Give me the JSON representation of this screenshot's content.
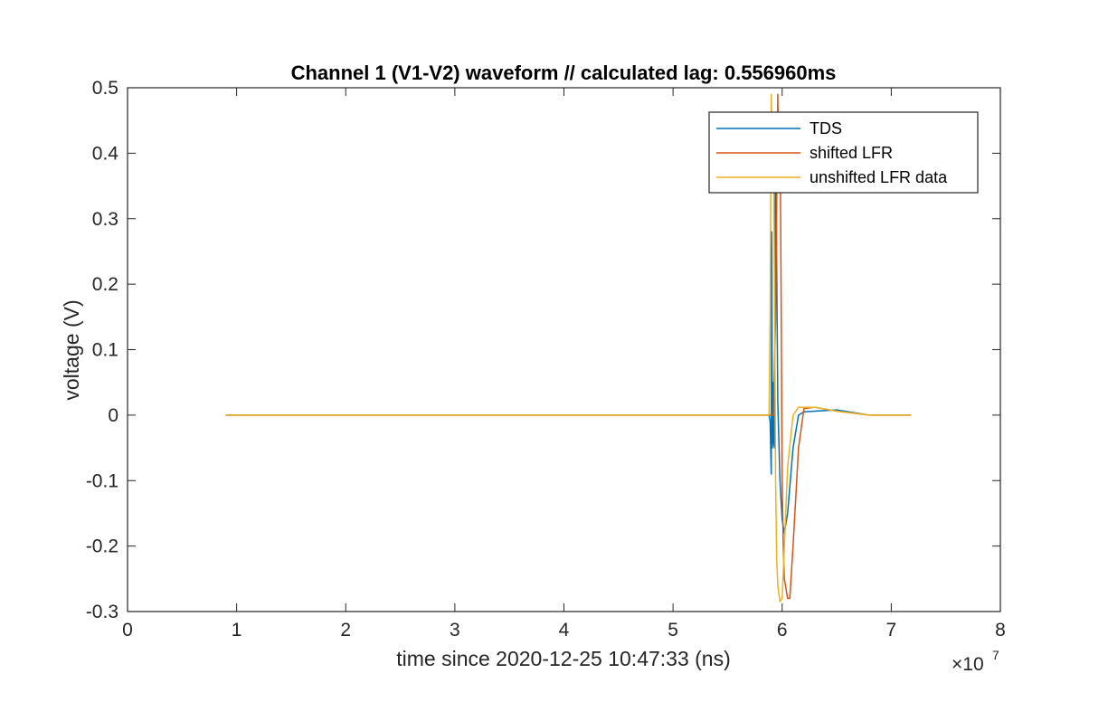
{
  "chart_data": {
    "type": "line",
    "title": "Channel 1 (V1-V2) waveform // calculated lag: 0.556960ms",
    "xlabel": "time since 2020-12-25 10:47:33 (ns)",
    "ylabel": "voltage (V)",
    "x_exponent_label": "×10",
    "x_exponent_power": "7",
    "xlim": [
      0,
      8
    ],
    "ylim": [
      -0.3,
      0.5
    ],
    "x_units_note": "x values in units of 1e7 ns",
    "xticks": [
      0,
      1,
      2,
      3,
      4,
      5,
      6,
      7,
      8
    ],
    "xtick_labels": [
      "0",
      "1",
      "2",
      "3",
      "4",
      "5",
      "6",
      "7",
      "8"
    ],
    "yticks": [
      -0.3,
      -0.2,
      -0.1,
      0,
      0.1,
      0.2,
      0.3,
      0.4,
      0.5
    ],
    "ytick_labels": [
      "-0.3",
      "-0.2",
      "-0.1",
      "0",
      "0.1",
      "0.2",
      "0.3",
      "0.4",
      "0.5"
    ],
    "grid": false,
    "legend_position": "top-right",
    "series": [
      {
        "name": "TDS",
        "color": "#0072BD",
        "x": [
          0.9,
          5.0,
          5.88,
          5.89,
          5.9,
          5.905,
          5.91,
          5.915,
          5.92,
          5.93,
          5.94,
          5.96,
          5.98,
          6.0,
          6.02,
          6.05,
          6.1,
          6.15,
          6.2,
          6.3,
          6.5,
          6.8,
          7.0,
          7.18
        ],
        "y": [
          0,
          0,
          0,
          -0.01,
          -0.09,
          0.28,
          -0.05,
          0.05,
          -0.04,
          -0.05,
          0.43,
          0.02,
          -0.1,
          -0.16,
          -0.18,
          -0.15,
          -0.05,
          0.0,
          0.005,
          0.006,
          0.008,
          0.0,
          0.0,
          0.0
        ]
      },
      {
        "name": "shifted LFR",
        "color": "#D95319",
        "x": [
          0.9,
          5.0,
          5.92,
          5.94,
          5.96,
          5.97,
          5.98,
          5.99,
          6.0,
          6.01,
          6.02,
          6.05,
          6.07,
          6.1,
          6.15,
          6.2,
          6.3,
          6.5,
          6.8,
          7.0,
          7.18
        ],
        "y": [
          0,
          0,
          0.0,
          0.15,
          0.49,
          0.35,
          0.45,
          0.2,
          -0.1,
          -0.2,
          -0.25,
          -0.28,
          -0.28,
          -0.2,
          -0.05,
          0.01,
          0.012,
          0.006,
          0.0,
          0.0,
          0.0
        ]
      },
      {
        "name": "unshifted LFR data",
        "color": "#EDB120",
        "x": [
          0.9,
          5.0,
          5.88,
          5.89,
          5.9,
          5.91,
          5.92,
          5.93,
          5.94,
          5.95,
          5.96,
          5.98,
          6.0,
          6.02,
          6.05,
          6.1,
          6.15,
          6.3,
          6.5,
          6.8,
          7.0,
          7.18
        ],
        "y": [
          0,
          0,
          0.0,
          0.15,
          0.49,
          0.38,
          0.45,
          0.2,
          -0.1,
          -0.22,
          -0.26,
          -0.285,
          -0.28,
          -0.2,
          -0.08,
          0.0,
          0.012,
          0.012,
          0.006,
          0.0,
          0.0,
          0.0
        ]
      }
    ]
  }
}
